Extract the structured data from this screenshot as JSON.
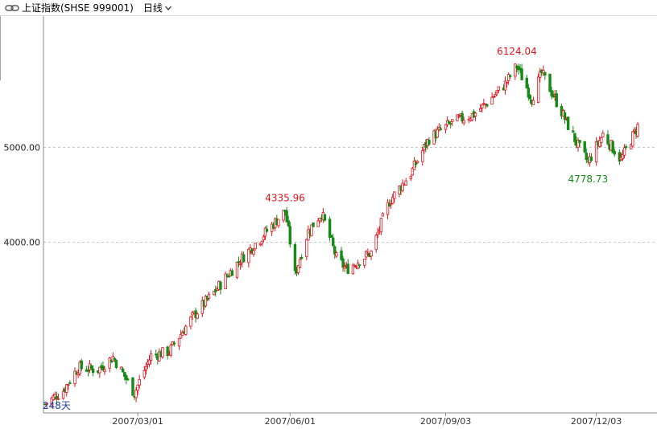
{
  "header": {
    "link_icon": "link-icon",
    "title": "上证指数(SHSE 999001)",
    "period_label": "日线",
    "period_icon": "chevron-down-icon"
  },
  "chart_data": {
    "type": "candlestick",
    "title": "",
    "xlabel": "",
    "ylabel": "",
    "ylim": [
      2650,
      6300
    ],
    "y_ticks": [
      {
        "value": 4000,
        "label": "4000.00"
      },
      {
        "value": 5000,
        "label": "5000.00"
      }
    ],
    "x_ticks": [
      {
        "date": "2007-03-01",
        "label": "2007/03/01"
      },
      {
        "date": "2007-06-01",
        "label": "2007/06/01"
      },
      {
        "date": "2007-09-03",
        "label": "2007/09/03"
      },
      {
        "date": "2007-12-03",
        "label": "2007/12/03"
      }
    ],
    "date_range": [
      "2007-01-04",
      "2007-12-28"
    ],
    "grid": true,
    "bar_count_label": "248天",
    "annotations": [
      {
        "label": "4335.96",
        "date": "2007-05-29",
        "value": 4335.96,
        "kind": "high"
      },
      {
        "label": "6124.04",
        "date": "2007-10-16",
        "value": 6124.04,
        "kind": "high"
      },
      {
        "label": "4778.73",
        "date": "2007-11-28",
        "value": 4778.73,
        "kind": "low"
      }
    ],
    "colors": {
      "up": "#e0141e",
      "down": "#168a16",
      "grid": "#c8c8c8"
    },
    "close_path": [
      {
        "date": "2007-01-04",
        "close": 2730
      },
      {
        "date": "2007-01-15",
        "close": 2820
      },
      {
        "date": "2007-01-24",
        "close": 2975
      },
      {
        "date": "2007-02-05",
        "close": 2960
      },
      {
        "date": "2007-02-14",
        "close": 3050
      },
      {
        "date": "2007-02-27",
        "close": 2800
      },
      {
        "date": "2007-03-02",
        "close": 2880
      },
      {
        "date": "2007-03-09",
        "close": 3060
      },
      {
        "date": "2007-03-20",
        "close": 3090
      },
      {
        "date": "2007-04-03",
        "close": 3350
      },
      {
        "date": "2007-04-16",
        "close": 3550
      },
      {
        "date": "2007-04-30",
        "close": 3800
      },
      {
        "date": "2007-05-15",
        "close": 4050
      },
      {
        "date": "2007-05-29",
        "close": 4300
      },
      {
        "date": "2007-06-04",
        "close": 3700
      },
      {
        "date": "2007-06-12",
        "close": 4100
      },
      {
        "date": "2007-06-20",
        "close": 4280
      },
      {
        "date": "2007-06-29",
        "close": 3850
      },
      {
        "date": "2007-07-05",
        "close": 3750
      },
      {
        "date": "2007-07-20",
        "close": 3900
      },
      {
        "date": "2007-07-31",
        "close": 4400
      },
      {
        "date": "2007-08-13",
        "close": 4700
      },
      {
        "date": "2007-08-24",
        "close": 5100
      },
      {
        "date": "2007-09-07",
        "close": 5300
      },
      {
        "date": "2007-09-20",
        "close": 5400
      },
      {
        "date": "2007-09-28",
        "close": 5550
      },
      {
        "date": "2007-10-09",
        "close": 5800
      },
      {
        "date": "2007-10-16",
        "close": 6050
      },
      {
        "date": "2007-10-25",
        "close": 5600
      },
      {
        "date": "2007-10-31",
        "close": 5950
      },
      {
        "date": "2007-11-07",
        "close": 5650
      },
      {
        "date": "2007-11-15",
        "close": 5300
      },
      {
        "date": "2007-11-21",
        "close": 5050
      },
      {
        "date": "2007-11-28",
        "close": 4820
      },
      {
        "date": "2007-12-07",
        "close": 5150
      },
      {
        "date": "2007-12-18",
        "close": 4850
      },
      {
        "date": "2007-12-28",
        "close": 5250
      }
    ]
  }
}
